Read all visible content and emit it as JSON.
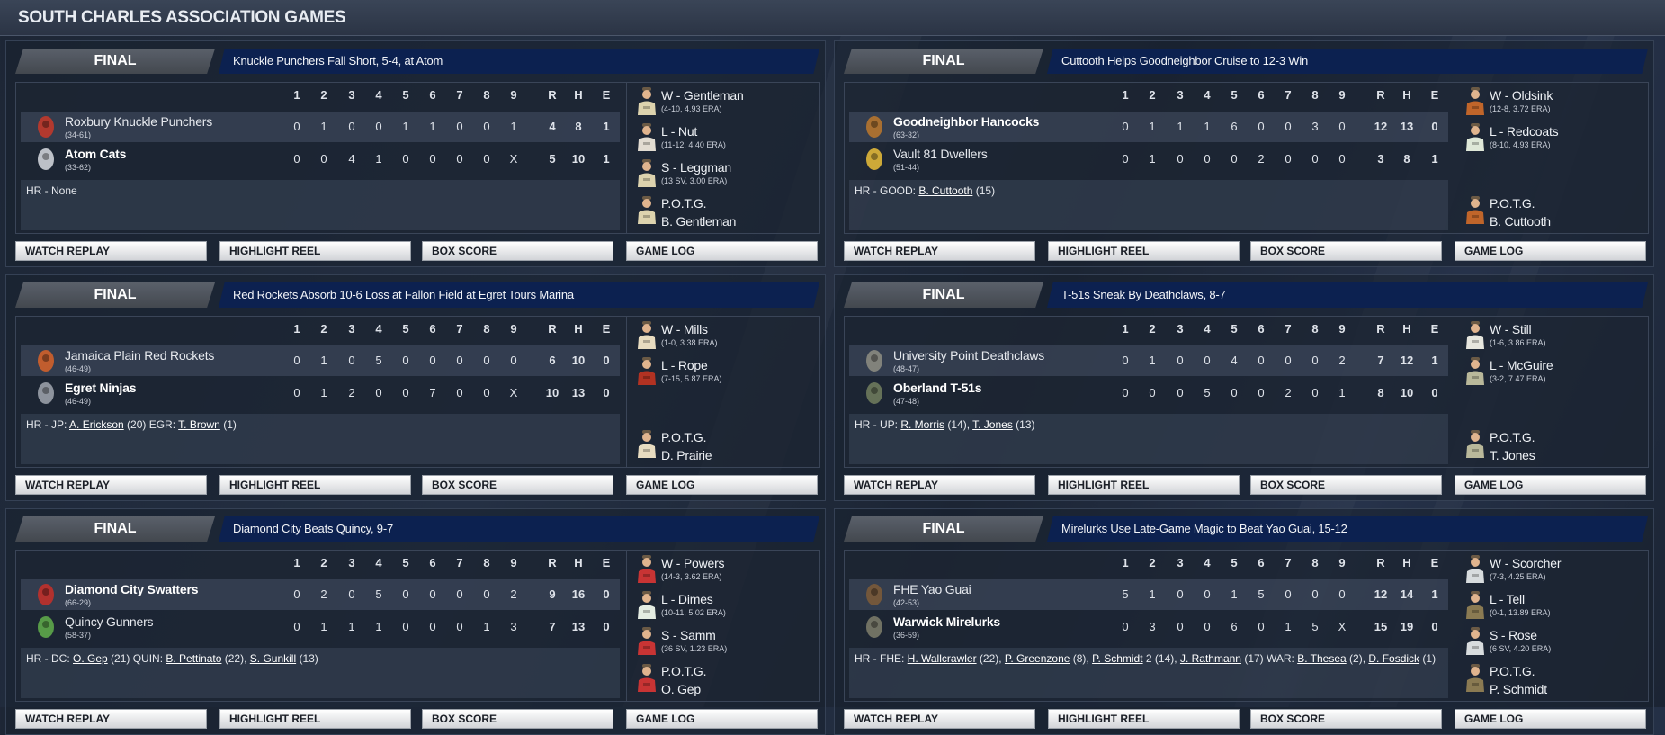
{
  "page_title": "SOUTH CHARLES ASSOCIATION GAMES",
  "innings_header": [
    "1",
    "2",
    "3",
    "4",
    "5",
    "6",
    "7",
    "8",
    "9"
  ],
  "rhe_header": [
    "R",
    "H",
    "E"
  ],
  "buttons": [
    "WATCH REPLAY",
    "HIGHLIGHT REEL",
    "BOX SCORE",
    "GAME LOG"
  ],
  "potg_label": "P.O.T.G.",
  "games": [
    {
      "status": "FINAL",
      "headline": "Knuckle Punchers Fall Short, 5-4, at Atom",
      "away": {
        "name": "Roxbury Knuckle Punchers",
        "record": "(34-61)",
        "innings": [
          "0",
          "1",
          "0",
          "0",
          "1",
          "1",
          "0",
          "0",
          "1"
        ],
        "r": "4",
        "h": "8",
        "e": "1",
        "winner": false,
        "logo": "red-r-logo",
        "color": "#c0392b"
      },
      "home": {
        "name": "Atom Cats",
        "record": "(33-62)",
        "innings": [
          "0",
          "0",
          "4",
          "1",
          "0",
          "0",
          "0",
          "0",
          "X"
        ],
        "r": "5",
        "h": "10",
        "e": "1",
        "winner": true,
        "logo": "cat-logo",
        "color": "#cfd3d8"
      },
      "hr": [
        {
          "t": "HR - None"
        }
      ],
      "pitchers": [
        {
          "label": "W - Gentleman",
          "line": "(4-10, 4.93 ERA)",
          "jersey": "#ddd3ae"
        },
        {
          "label": "L - Nut",
          "line": "(11-12, 4.40 ERA)",
          "jersey": "#e2dcd2"
        },
        {
          "label": "S - Leggman",
          "line": "(13 SV, 3.00 ERA)",
          "jersey": "#ddd3ae"
        }
      ],
      "potg": {
        "name": "B. Gentleman",
        "jersey": "#ddd3ae"
      }
    },
    {
      "status": "FINAL",
      "headline": "Cuttooth Helps Goodneighbor Cruise to 12-3 Win",
      "away": {
        "name": "Goodneighbor Hancocks",
        "record": "(63-32)",
        "innings": [
          "0",
          "1",
          "1",
          "1",
          "6",
          "0",
          "0",
          "3",
          "0"
        ],
        "r": "12",
        "h": "13",
        "e": "0",
        "winner": true,
        "logo": "hancock-logo",
        "color": "#b5742e"
      },
      "home": {
        "name": "Vault 81 Dwellers",
        "record": "(51-44)",
        "innings": [
          "0",
          "1",
          "0",
          "0",
          "0",
          "2",
          "0",
          "0",
          "0"
        ],
        "r": "3",
        "h": "8",
        "e": "1",
        "winner": false,
        "logo": "vault-boy-logo",
        "color": "#e0b838"
      },
      "hr": [
        {
          "t": "HR - GOOD: "
        },
        {
          "t": "B. Cuttooth",
          "link": true
        },
        {
          "t": " (15)"
        }
      ],
      "pitchers": [
        {
          "label": "W - Oldsink",
          "line": "(12-8, 3.72 ERA)",
          "jersey": "#c0652a"
        },
        {
          "label": "L - Redcoats",
          "line": "(8-10, 4.93 ERA)",
          "jersey": "#dfe8d8"
        }
      ],
      "potg": {
        "name": "B. Cuttooth",
        "jersey": "#c0652a"
      }
    },
    {
      "status": "FINAL",
      "headline": "Red Rockets Absorb 10-6 Loss at Fallon Field at Egret Tours Marina",
      "away": {
        "name": "Jamaica Plain Red Rockets",
        "record": "(46-49)",
        "innings": [
          "0",
          "1",
          "0",
          "5",
          "0",
          "0",
          "0",
          "0",
          "0"
        ],
        "r": "6",
        "h": "10",
        "e": "0",
        "winner": false,
        "logo": "rocket-logo",
        "color": "#d0602a"
      },
      "home": {
        "name": "Egret Ninjas",
        "record": "(46-49)",
        "innings": [
          "0",
          "1",
          "2",
          "0",
          "0",
          "7",
          "0",
          "0",
          "X"
        ],
        "r": "10",
        "h": "13",
        "e": "0",
        "winner": true,
        "logo": "ninja-logo",
        "color": "#9aa0a8"
      },
      "hr": [
        {
          "t": "HR - JP: "
        },
        {
          "t": "A. Erickson",
          "link": true
        },
        {
          "t": " (20)  EGR: "
        },
        {
          "t": "T. Brown",
          "link": true
        },
        {
          "t": " (1)"
        }
      ],
      "pitchers": [
        {
          "label": "W - Mills",
          "line": "(1-0, 3.38 ERA)",
          "jersey": "#e8dcc0"
        },
        {
          "label": "L - Rope",
          "line": "(7-15, 5.87 ERA)",
          "jersey": "#b23222"
        }
      ],
      "potg": {
        "name": "D. Prairie",
        "jersey": "#e8dcc0"
      }
    },
    {
      "status": "FINAL",
      "headline": "T-51s Sneak By Deathclaws, 8-7",
      "away": {
        "name": "University Point Deathclaws",
        "record": "(48-47)",
        "innings": [
          "0",
          "1",
          "0",
          "0",
          "4",
          "0",
          "0",
          "0",
          "2"
        ],
        "r": "7",
        "h": "12",
        "e": "1",
        "winner": false,
        "logo": "deathclaw-logo",
        "color": "#8a8a80"
      },
      "home": {
        "name": "Oberland T-51s",
        "record": "(47-48)",
        "innings": [
          "0",
          "0",
          "0",
          "5",
          "0",
          "0",
          "2",
          "0",
          "1"
        ],
        "r": "8",
        "h": "10",
        "e": "0",
        "winner": true,
        "logo": "power-armor-logo",
        "color": "#6e7a5c"
      },
      "hr": [
        {
          "t": "HR - UP: "
        },
        {
          "t": "R. Morris",
          "link": true
        },
        {
          "t": " (14), "
        },
        {
          "t": "T. Jones",
          "link": true
        },
        {
          "t": " (13)"
        }
      ],
      "pitchers": [
        {
          "label": "W - Still",
          "line": "(1-6, 3.86 ERA)",
          "jersey": "#e6e6de"
        },
        {
          "label": "L - McGuire",
          "line": "(3-2, 7.47 ERA)",
          "jersey": "#b9b89a"
        }
      ],
      "potg": {
        "name": "T. Jones",
        "jersey": "#b9b89a"
      }
    },
    {
      "status": "FINAL",
      "headline": "Diamond City Beats Quincy, 9-7",
      "away": {
        "name": "Diamond City Swatters",
        "record": "(66-29)",
        "innings": [
          "0",
          "2",
          "0",
          "5",
          "0",
          "0",
          "0",
          "0",
          "2"
        ],
        "r": "9",
        "h": "16",
        "e": "0",
        "winner": true,
        "logo": "swatter-logo",
        "color": "#c0302a"
      },
      "home": {
        "name": "Quincy Gunners",
        "record": "(58-37)",
        "innings": [
          "0",
          "1",
          "1",
          "1",
          "0",
          "0",
          "0",
          "1",
          "3"
        ],
        "r": "7",
        "h": "13",
        "e": "0",
        "winner": false,
        "logo": "skull-logo",
        "color": "#5ea84a"
      },
      "hr": [
        {
          "t": "HR - DC: "
        },
        {
          "t": "O. Gep",
          "link": true
        },
        {
          "t": " (21)  QUIN: "
        },
        {
          "t": "B. Pettinato",
          "link": true
        },
        {
          "t": " (22), "
        },
        {
          "t": "S. Gunkill",
          "link": true
        },
        {
          "t": " (13)"
        }
      ],
      "pitchers": [
        {
          "label": "W - Powers",
          "line": "(14-3, 3.62 ERA)",
          "jersey": "#c83434"
        },
        {
          "label": "L - Dimes",
          "line": "(10-11, 5.02 ERA)",
          "jersey": "#e4ece2"
        },
        {
          "label": "S - Samm",
          "line": "(36 SV, 1.23 ERA)",
          "jersey": "#c83434"
        }
      ],
      "potg": {
        "name": "O. Gep",
        "jersey": "#c83434"
      }
    },
    {
      "status": "FINAL",
      "headline": "Mirelurks Use Late-Game Magic to Beat Yao Guai, 15-12",
      "away": {
        "name": "FHE Yao Guai",
        "record": "(42-53)",
        "innings": [
          "5",
          "1",
          "0",
          "0",
          "1",
          "5",
          "0",
          "0",
          "0"
        ],
        "r": "12",
        "h": "14",
        "e": "1",
        "winner": false,
        "logo": "yao-guai-logo",
        "color": "#7a5a3a"
      },
      "home": {
        "name": "Warwick Mirelurks",
        "record": "(36-59)",
        "innings": [
          "0",
          "3",
          "0",
          "0",
          "6",
          "0",
          "1",
          "5",
          "X"
        ],
        "r": "15",
        "h": "19",
        "e": "0",
        "winner": true,
        "logo": "mirelurk-logo",
        "color": "#7a7a68"
      },
      "hr": [
        {
          "t": "HR - FHE: "
        },
        {
          "t": "H. Wallcrawler",
          "link": true
        },
        {
          "t": " (22), "
        },
        {
          "t": "P. Greenzone",
          "link": true
        },
        {
          "t": " (8), "
        },
        {
          "t": "P. Schmidt",
          "link": true
        },
        {
          "t": " 2 (14), "
        },
        {
          "t": "J. Rathmann",
          "link": true
        },
        {
          "t": " (17)  WAR: "
        },
        {
          "t": "B. Thesea",
          "link": true
        },
        {
          "t": " (2), "
        },
        {
          "t": "D. Fosdick",
          "link": true
        },
        {
          "t": " (1)"
        }
      ],
      "pitchers": [
        {
          "label": "W - Scorcher",
          "line": "(7-3, 4.25 ERA)",
          "jersey": "#d8dcde"
        },
        {
          "label": "L - Tell",
          "line": "(0-1, 13.89 ERA)",
          "jersey": "#8a7a52"
        },
        {
          "label": "S - Rose",
          "line": "(6 SV, 4.20 ERA)",
          "jersey": "#d8dcde"
        }
      ],
      "potg": {
        "name": "P. Schmidt",
        "jersey": "#8a7a52"
      }
    }
  ]
}
